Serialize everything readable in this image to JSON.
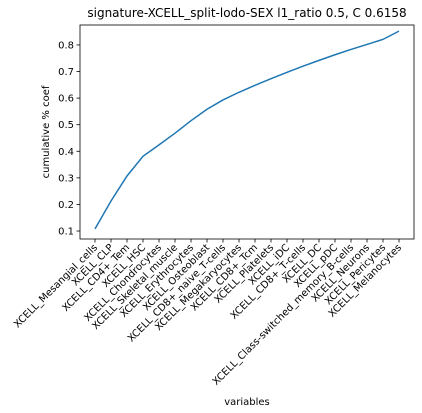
{
  "chart_data": {
    "type": "line",
    "title": "signature-XCELL_split-lodo-SEX l1_ratio 0.5, C 0.6158",
    "xlabel": "variables",
    "ylabel": "cumulative % coef",
    "ylim": [
      0.07,
      0.875
    ],
    "yticks": [
      "0.1",
      "0.2",
      "0.3",
      "0.4",
      "0.5",
      "0.6",
      "0.7",
      "0.8"
    ],
    "grid": false,
    "categories": [
      "XCELL_Mesangial_cells",
      "XCELL_CLP",
      "XCELL_CD4+_Tem",
      "XCELL_HSC",
      "XCELL_Chondrocytes",
      "XCELL_Skeletal_muscle",
      "XCELL_Erythrocytes",
      "XCELL_Osteoblast",
      "XCELL_CD8+_naive_T-cells",
      "XCELL_Megakaryocytes",
      "XCELL_CD8+_Tcm",
      "XCELL_Platelets",
      "XCELL_iDC",
      "XCELL_CD8+_T-cells",
      "XCELL_DC",
      "XCELL_pDC",
      "XCELL_Class-switched_memory_B-cells",
      "XCELL_Neurons",
      "XCELL_Pericytes",
      "XCELL_Melanocytes"
    ],
    "values": [
      0.108,
      0.213,
      0.307,
      0.381,
      0.424,
      0.468,
      0.515,
      0.558,
      0.593,
      0.622,
      0.648,
      0.673,
      0.697,
      0.72,
      0.742,
      0.763,
      0.783,
      0.802,
      0.821,
      0.852
    ],
    "line_color": "#1f77b4"
  }
}
